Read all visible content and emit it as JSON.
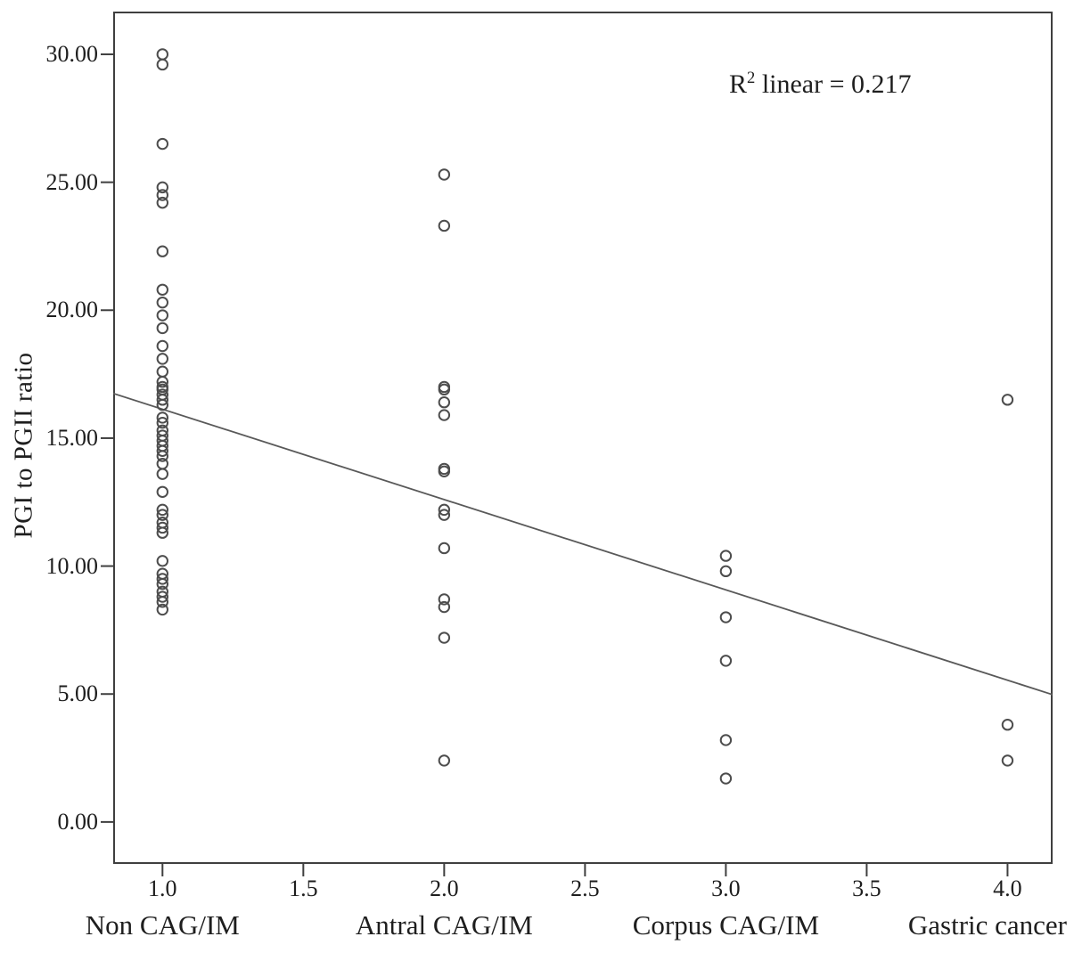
{
  "figure": {
    "annotation": {
      "r_base": "R",
      "r_sup": "2",
      "r_rest": " linear = 0.217"
    }
  },
  "chart_data": {
    "type": "scatter",
    "title": "",
    "xlabel": "",
    "ylabel": "PGI to PGII ratio",
    "xlim": [
      0.825,
      4.16
    ],
    "ylim": [
      -1.64,
      31.67
    ],
    "grid": false,
    "legend": "none",
    "annotation": "R² linear = 0.217",
    "y_ticks": [
      {
        "value": 0,
        "label": "0.00"
      },
      {
        "value": 5,
        "label": "5.00"
      },
      {
        "value": 10,
        "label": "10.00"
      },
      {
        "value": 15,
        "label": "15.00"
      },
      {
        "value": 20,
        "label": "20.00"
      },
      {
        "value": 25,
        "label": "25.00"
      },
      {
        "value": 30,
        "label": "30.00"
      }
    ],
    "x_ticks": [
      {
        "value": 1.0,
        "label": "1.0"
      },
      {
        "value": 1.5,
        "label": "1.5"
      },
      {
        "value": 2.0,
        "label": "2.0"
      },
      {
        "value": 2.5,
        "label": "2.5"
      },
      {
        "value": 3.0,
        "label": "3.0"
      },
      {
        "value": 3.5,
        "label": "3.5"
      },
      {
        "value": 4.0,
        "label": "4.0"
      }
    ],
    "categories": [
      {
        "x": 1.0,
        "label": "Non CAG/IM"
      },
      {
        "x": 2.0,
        "label": "Antral CAG/IM"
      },
      {
        "x": 3.0,
        "label": "Corpus CAG/IM"
      },
      {
        "x": 4.0,
        "label": "Gastric cancer"
      }
    ],
    "series": [
      {
        "name": "Non CAG/IM",
        "x": 1.0,
        "values": [
          30.0,
          29.6,
          26.5,
          24.8,
          24.5,
          24.2,
          22.3,
          20.8,
          20.3,
          19.8,
          19.3,
          18.6,
          18.1,
          17.6,
          17.2,
          17.0,
          16.9,
          16.7,
          16.5,
          16.3,
          15.8,
          15.6,
          15.3,
          15.1,
          14.9,
          14.7,
          14.5,
          14.3,
          14.0,
          13.6,
          12.9,
          12.2,
          12.0,
          11.7,
          11.5,
          11.3,
          10.2,
          9.7,
          9.5,
          9.3,
          9.0,
          8.8,
          8.6,
          8.3
        ]
      },
      {
        "name": "Antral CAG/IM",
        "x": 2.0,
        "values": [
          25.3,
          23.3,
          17.0,
          16.9,
          16.4,
          15.9,
          13.8,
          13.7,
          12.2,
          12.0,
          10.7,
          8.7,
          8.4,
          7.2,
          2.4
        ]
      },
      {
        "name": "Corpus CAG/IM",
        "x": 3.0,
        "values": [
          10.4,
          9.8,
          8.0,
          6.3,
          3.2,
          1.7
        ]
      },
      {
        "name": "Gastric cancer",
        "x": 4.0,
        "values": [
          16.5,
          3.8,
          2.4
        ]
      }
    ],
    "regression": {
      "slope": -3.53,
      "intercept": 19.66,
      "r2": 0.217
    },
    "marker": {
      "shape": "open-circle",
      "radius": 5.7,
      "stroke_width": 2,
      "color": "#4d4d4d"
    },
    "colors": {
      "axis": "#3f3f3f",
      "text": "#1e1e1e",
      "line": "#595959"
    }
  }
}
